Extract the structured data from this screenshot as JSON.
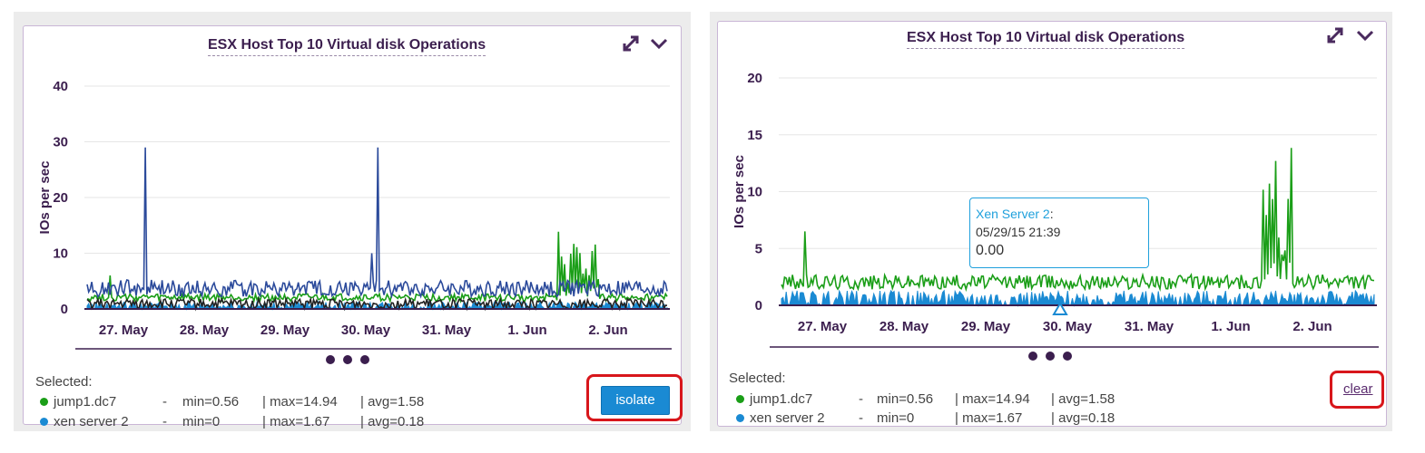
{
  "chart_data": [
    {
      "type": "line",
      "title": "ESX Host Top 10 Virtual disk Operations",
      "ylabel": "IOs per sec",
      "xlabel": "",
      "ylim": [
        0,
        40
      ],
      "yticks": [
        0,
        10,
        20,
        30,
        40
      ],
      "xticks": [
        "27. May",
        "28. May",
        "29. May",
        "30. May",
        "31. May",
        "1. Jun",
        "2. Jun"
      ],
      "grid": true,
      "series": [
        {
          "name": "jump1.dc7",
          "color": "#1a9e17",
          "min": 0.56,
          "max": 14.94,
          "avg": 1.58
        },
        {
          "name": "xen server 2",
          "color": "#1a8ad3",
          "min": 0,
          "max": 1.67,
          "avg": 0.18
        },
        {
          "color": "#2b4a9b",
          "peak": 29
        },
        {
          "color": "#222222"
        }
      ]
    },
    {
      "type": "line",
      "title": "ESX Host Top 10 Virtual disk Operations",
      "ylabel": "IOs per sec",
      "xlabel": "",
      "ylim": [
        0,
        20
      ],
      "yticks": [
        0,
        5,
        10,
        15,
        20
      ],
      "xticks": [
        "27. May",
        "28. May",
        "29. May",
        "30. May",
        "31. May",
        "1. Jun",
        "2. Jun"
      ],
      "grid": true,
      "series": [
        {
          "name": "jump1.dc7",
          "color": "#1a9e17",
          "min": 0.56,
          "max": 14.94,
          "avg": 1.58
        },
        {
          "name": "xen server 2",
          "color": "#1a8ad3",
          "min": 0,
          "max": 1.67,
          "avg": 0.18
        }
      ],
      "tooltip": {
        "series": "Xen Server 2",
        "colon": ":",
        "date": "05/29/15 21:39",
        "value": "0.00"
      }
    }
  ],
  "left": {
    "selected_label": "Selected:",
    "rows": [
      {
        "name": "jump1.dc7",
        "color": "#1a9e17",
        "dash": "-",
        "min": "min=0.56",
        "max": "| max=14.94",
        "avg": "| avg=1.58"
      },
      {
        "name": "xen server 2",
        "color": "#1a8ad3",
        "dash": "-",
        "min": "min=0",
        "max": "| max=1.67",
        "avg": "| avg=0.18"
      }
    ],
    "button": "isolate"
  },
  "right": {
    "selected_label": "Selected:",
    "rows": [
      {
        "name": "jump1.dc7",
        "color": "#1a9e17",
        "dash": "-",
        "min": "min=0.56",
        "max": "| max=14.94",
        "avg": "| avg=1.58"
      },
      {
        "name": "xen server 2",
        "color": "#1a8ad3",
        "dash": "-",
        "min": "min=0",
        "max": "| max=1.67",
        "avg": "| avg=0.18"
      }
    ],
    "link": "clear"
  },
  "icons": {
    "expand": "expand-arrows-icon",
    "collapse": "chevron-down-icon"
  }
}
